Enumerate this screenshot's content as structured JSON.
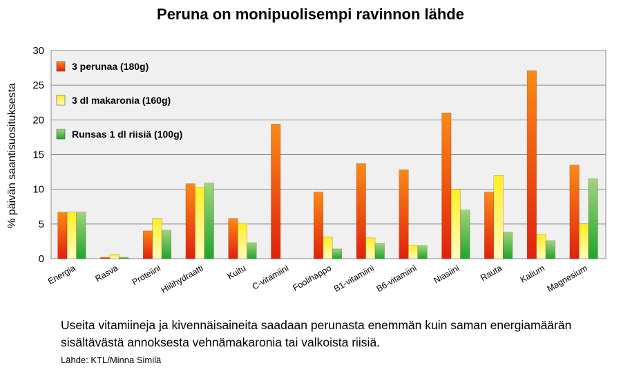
{
  "title": "Peruna on monipuolisempi ravinnon lähde",
  "caption": "Useita vitamiineja ja kivennäisaineita saadaan perunasta enemmän kuin saman energiamäärän sisältävästä annoksesta vehnämakaronia tai valkoista riisiä.",
  "source": "Lähde: KTL/Minna Similä",
  "chart_data": {
    "type": "bar",
    "ylabel": "% päivän saantisuosituksesta",
    "ylim": [
      0,
      30
    ],
    "yticks": [
      0,
      5,
      10,
      15,
      20,
      25,
      30
    ],
    "grid": true,
    "legend_position": "top-left",
    "categories": [
      "Energia",
      "Rasva",
      "Proteiini",
      "Hiilihydraatti",
      "Kuitu",
      "C-vitamiini",
      "Foolihappo",
      "B1-vitamiini",
      "B6-vitamiini",
      "Niasiini",
      "Rauta",
      "Kalium",
      "Magnesium"
    ],
    "series": [
      {
        "name": "3 perunaa (180g)",
        "color": "#e8470f",
        "values": [
          6.7,
          0.2,
          4.0,
          10.8,
          5.8,
          19.4,
          9.6,
          13.7,
          12.8,
          21.0,
          9.6,
          27.1,
          13.5
        ]
      },
      {
        "name": "3 dl makaronia (160g)",
        "color": "#f4e01a",
        "values": [
          6.7,
          0.6,
          5.8,
          10.3,
          5.1,
          0,
          3.1,
          3.0,
          1.9,
          10.0,
          12.0,
          3.5,
          5.0
        ]
      },
      {
        "name": "Runsas 1 dl riisiä (100g)",
        "color": "#3fab3c",
        "values": [
          6.7,
          0.2,
          4.1,
          10.9,
          2.3,
          0,
          1.4,
          2.2,
          1.9,
          7.0,
          3.8,
          2.6,
          11.5
        ]
      }
    ]
  }
}
